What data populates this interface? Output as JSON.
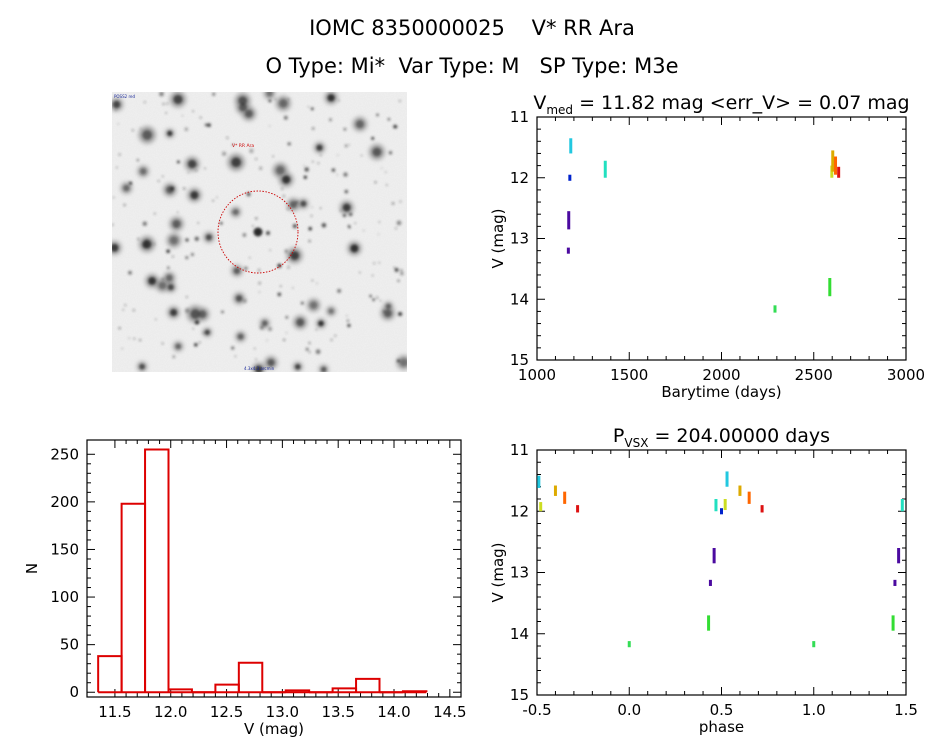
{
  "header": {
    "title_line1": "IOMC 8350000025    V* RR Ara",
    "title_line2": "O Type: Mi*  Var Type: M   SP Type: M3e"
  },
  "image_panel": {
    "target_label": "V* RR Ara",
    "corner_label_tl": "POSS2 red",
    "corner_label_bottom": "4.3x4.3 arcmin",
    "circle_color": "#cc0000"
  },
  "chart_data": [
    {
      "id": "lightcurve",
      "type": "scatter",
      "title_main": "V",
      "title_sub": "med",
      "title_rest": " = 11.82 mag <err_V> = 0.07 mag",
      "xlabel": "Barytime (days)",
      "ylabel": "V (mag)",
      "xlim": [
        1000,
        3000
      ],
      "ylim": [
        15,
        11
      ],
      "xticks": [
        1000,
        1500,
        2000,
        2500,
        3000
      ],
      "xtick_labels": [
        "1000",
        "1500",
        "2000",
        "2500",
        "3000"
      ],
      "yticks": [
        11,
        12,
        13,
        14,
        15
      ],
      "ytick_labels": [
        "11",
        "12",
        "13",
        "14",
        "15"
      ],
      "points": [
        {
          "x": 1172,
          "y1": 12.55,
          "y2": 12.85,
          "color": "#4b0aa0"
        },
        {
          "x": 1170,
          "y1": 13.15,
          "y2": 13.25,
          "color": "#4b0aa0"
        },
        {
          "x": 1178,
          "y1": 11.95,
          "y2": 12.05,
          "color": "#0022cc"
        },
        {
          "x": 1183,
          "y1": 11.35,
          "y2": 11.6,
          "color": "#22c8e0"
        },
        {
          "x": 1370,
          "y1": 11.72,
          "y2": 12.0,
          "color": "#22e0c0"
        },
        {
          "x": 2290,
          "y1": 14.1,
          "y2": 14.22,
          "color": "#33dd55"
        },
        {
          "x": 2587,
          "y1": 13.65,
          "y2": 13.95,
          "color": "#33dd33"
        },
        {
          "x": 2598,
          "y1": 11.8,
          "y2": 12.0,
          "color": "#ccdd22"
        },
        {
          "x": 2603,
          "y1": 11.55,
          "y2": 11.9,
          "color": "#ddaa00"
        },
        {
          "x": 2618,
          "y1": 11.65,
          "y2": 11.95,
          "color": "#ff6600"
        },
        {
          "x": 2635,
          "y1": 11.82,
          "y2": 12.0,
          "color": "#dd1111"
        }
      ]
    },
    {
      "id": "histogram",
      "type": "bar",
      "xlabel": "V (mag)",
      "ylabel": "N",
      "xlim": [
        11.25,
        14.6
      ],
      "ylim": [
        -5,
        265
      ],
      "xticks": [
        11.5,
        12.0,
        12.5,
        13.0,
        13.5,
        14.0,
        14.5
      ],
      "xtick_labels": [
        "11.5",
        "12.0",
        "12.5",
        "13.0",
        "13.5",
        "14.0",
        "14.5"
      ],
      "yticks": [
        0,
        50,
        100,
        150,
        200,
        250
      ],
      "ytick_labels": [
        "0",
        "50",
        "100",
        "150",
        "200",
        "250"
      ],
      "bin_edges": [
        11.35,
        11.56,
        11.77,
        11.98,
        12.19,
        12.4,
        12.61,
        12.82,
        13.03,
        13.24,
        13.45,
        13.66,
        13.87,
        14.08,
        14.29
      ],
      "values": [
        38,
        198,
        255,
        3,
        0,
        8,
        31,
        0,
        2,
        0,
        4,
        14,
        0,
        1
      ],
      "bar_color": "#dd0000"
    },
    {
      "id": "phased",
      "type": "scatter",
      "title_main": "P",
      "title_sub": "VSX",
      "title_rest": " = 204.00000 days",
      "xlabel": "phase",
      "ylabel": "V (mag)",
      "xlim": [
        -0.5,
        1.5
      ],
      "ylim": [
        15,
        11
      ],
      "xticks": [
        -0.5,
        0.0,
        0.5,
        1.0,
        1.5
      ],
      "xtick_labels": [
        "-0.5",
        "0.0",
        "0.5",
        "1.0",
        "1.5"
      ],
      "yticks": [
        11,
        12,
        13,
        14,
        15
      ],
      "ytick_labels": [
        "11",
        "12",
        "13",
        "14",
        "15"
      ],
      "points": [
        {
          "x": -0.49,
          "y1": 11.42,
          "y2": 11.62,
          "color": "#22c8e0"
        },
        {
          "x": -0.48,
          "y1": 11.85,
          "y2": 12.0,
          "color": "#ccdd22"
        },
        {
          "x": -0.4,
          "y1": 11.58,
          "y2": 11.75,
          "color": "#ddaa00"
        },
        {
          "x": -0.35,
          "y1": 11.68,
          "y2": 11.88,
          "color": "#ff6600"
        },
        {
          "x": -0.28,
          "y1": 11.9,
          "y2": 12.02,
          "color": "#dd1111"
        },
        {
          "x": 0.0,
          "y1": 14.12,
          "y2": 14.22,
          "color": "#33dd55"
        },
        {
          "x": 0.43,
          "y1": 13.7,
          "y2": 13.95,
          "color": "#33dd33"
        },
        {
          "x": 0.44,
          "y1": 13.12,
          "y2": 13.22,
          "color": "#4b0aa0"
        },
        {
          "x": 0.46,
          "y1": 12.6,
          "y2": 12.85,
          "color": "#4b0aa0"
        },
        {
          "x": 0.47,
          "y1": 11.8,
          "y2": 12.0,
          "color": "#22e0c0"
        },
        {
          "x": 0.5,
          "y1": 11.95,
          "y2": 12.05,
          "color": "#0022cc"
        },
        {
          "x": 0.52,
          "y1": 11.8,
          "y2": 11.98,
          "color": "#ccdd22"
        },
        {
          "x": 0.53,
          "y1": 11.35,
          "y2": 11.6,
          "color": "#22c8e0"
        },
        {
          "x": 0.6,
          "y1": 11.58,
          "y2": 11.75,
          "color": "#ddaa00"
        },
        {
          "x": 0.65,
          "y1": 11.68,
          "y2": 11.88,
          "color": "#ff6600"
        },
        {
          "x": 0.72,
          "y1": 11.9,
          "y2": 12.02,
          "color": "#dd1111"
        },
        {
          "x": 1.0,
          "y1": 14.12,
          "y2": 14.22,
          "color": "#33dd55"
        },
        {
          "x": 1.43,
          "y1": 13.7,
          "y2": 13.95,
          "color": "#33dd33"
        },
        {
          "x": 1.44,
          "y1": 13.12,
          "y2": 13.22,
          "color": "#4b0aa0"
        },
        {
          "x": 1.46,
          "y1": 12.6,
          "y2": 12.85,
          "color": "#4b0aa0"
        },
        {
          "x": 1.48,
          "y1": 11.8,
          "y2": 12.0,
          "color": "#22e0c0"
        }
      ]
    }
  ]
}
